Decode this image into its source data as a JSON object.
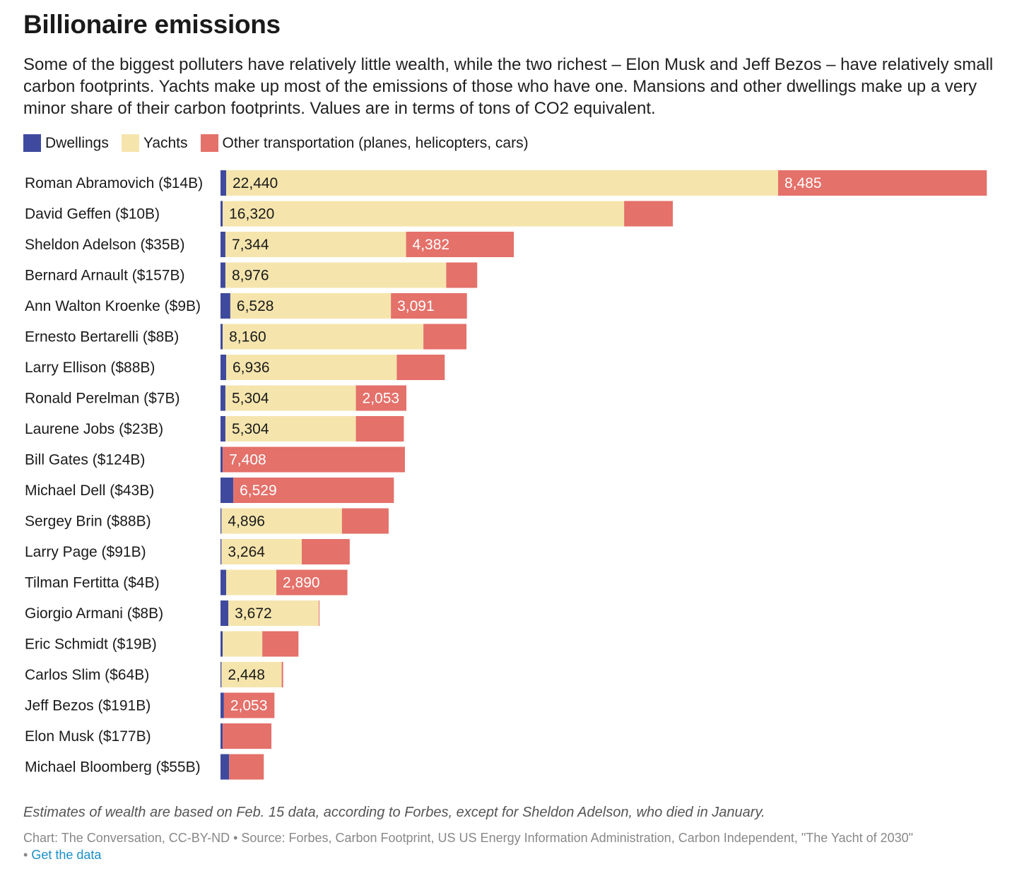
{
  "title": "Billionaire emissions",
  "subtitle": "Some of the biggest polluters have relatively little wealth, while the two richest – Elon Musk and Jeff Bezos – have relatively small carbon footprints. Yachts make up most of the emissions of those who have one. Mansions and other dwellings make up a very minor share of their carbon footprints. Values are in terms of tons of CO2 equivalent.",
  "legend": [
    {
      "label": "Dwellings",
      "color": "#3f4a9e"
    },
    {
      "label": "Yachts",
      "color": "#f5e5ad"
    },
    {
      "label": "Other transportation (planes, helicopters, cars)",
      "color": "#e4716a"
    }
  ],
  "note": "Estimates of wealth are based on Feb. 15 data, according to Forbes, except for Sheldon Adelson, who died in January.",
  "source": "Chart: The Conversation, CC-BY-ND • Source: Forbes, Carbon Footprint, US US Energy Information Administration, Carbon Independent, \"The Yacht of 2030\"",
  "get_data_sep": "•",
  "get_data": "Get the data",
  "chart_data": {
    "type": "bar",
    "orientation": "horizontal",
    "stacked": true,
    "title": "Billionaire emissions",
    "xlabel": "",
    "ylabel": "",
    "xlim": [
      0,
      31200
    ],
    "grid": false,
    "legend_position": "top-left",
    "categories": [
      "Roman Abramovich ($14B)",
      "David Geffen ($10B)",
      "Sheldon Adelson ($35B)",
      "Bernard Arnault ($157B)",
      "Ann Walton Kroenke ($9B)",
      "Ernesto Bertarelli ($8B)",
      "Larry Ellison ($88B)",
      "Ronald Perelman ($7B)",
      "Laurene Jobs ($23B)",
      "Bill Gates ($124B)",
      "Michael Dell ($43B)",
      "Sergey Brin ($88B)",
      "Larry Page ($91B)",
      "Tilman Fertitta ($4B)",
      "Giorgio Armani ($8B)",
      "Eric Schmidt ($19B)",
      "Carlos Slim ($64B)",
      "Jeff Bezos ($191B)",
      "Elon Musk ($177B)",
      "Michael Bloomberg ($55B)"
    ],
    "series": [
      {
        "name": "Dwellings",
        "values": [
          230,
          90,
          200,
          200,
          400,
          90,
          230,
          200,
          200,
          90,
          520,
          40,
          40,
          230,
          320,
          90,
          40,
          140,
          90,
          350
        ],
        "labels": [
          null,
          null,
          null,
          null,
          null,
          null,
          null,
          null,
          null,
          null,
          null,
          null,
          null,
          null,
          null,
          null,
          null,
          null,
          null,
          null
        ]
      },
      {
        "name": "Yachts",
        "values": [
          22440,
          16320,
          7344,
          8976,
          6528,
          8160,
          6936,
          5304,
          5304,
          0,
          0,
          4896,
          3264,
          2040,
          3672,
          1610,
          2448,
          0,
          0,
          0
        ],
        "labels": [
          "22,440",
          "16,320",
          "7,344",
          "8,976",
          "6,528",
          "8,160",
          "6,936",
          "5,304",
          "5,304",
          null,
          null,
          "4,896",
          "3,264",
          null,
          "3,672",
          null,
          "2,448",
          null,
          null,
          null
        ]
      },
      {
        "name": "Other transportation (planes, helicopters, cars)",
        "values": [
          8485,
          1980,
          4382,
          1260,
          3091,
          1750,
          1950,
          2053,
          1950,
          7408,
          6529,
          1900,
          1950,
          2890,
          30,
          1470,
          60,
          2053,
          1980,
          1410
        ],
        "labels": [
          "8,485",
          null,
          "4,382",
          null,
          "3,091",
          null,
          null,
          "2,053",
          null,
          "7,408",
          "6,529",
          null,
          null,
          "2,890",
          null,
          null,
          null,
          "2,053",
          null,
          null
        ]
      }
    ]
  }
}
